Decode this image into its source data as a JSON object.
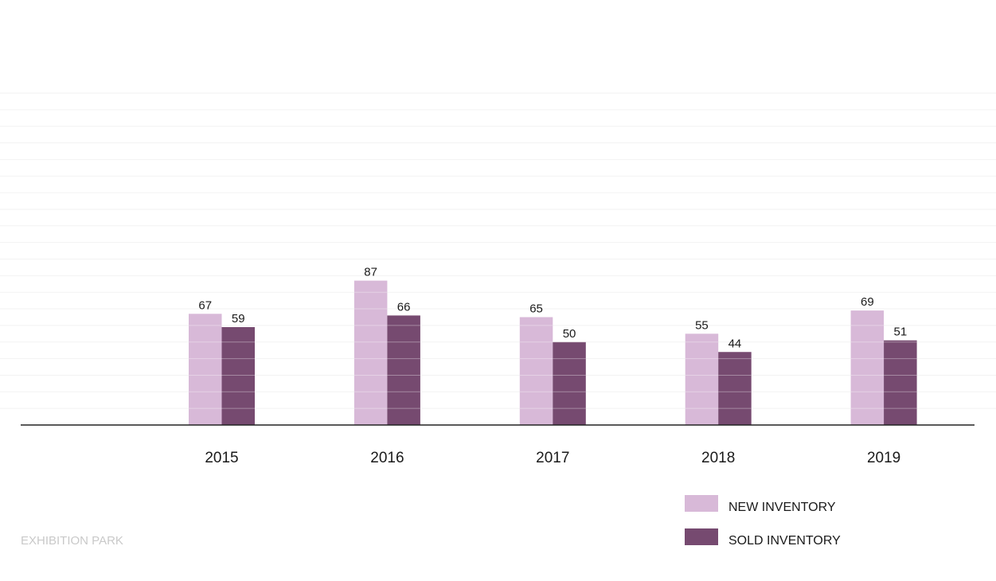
{
  "colors": {
    "new": "#d8b9d8",
    "sold": "#764a70",
    "axis": "#222222",
    "grid": "#f2f2f2",
    "bar_stripe": "#ffffff"
  },
  "chart_data": {
    "type": "bar",
    "categories": [
      "2015",
      "2016",
      "2017",
      "2018",
      "2019"
    ],
    "series": [
      {
        "name": "NEW INVENTORY",
        "values": [
          67,
          87,
          65,
          55,
          69
        ]
      },
      {
        "name": "SOLD INVENTORY",
        "values": [
          59,
          66,
          50,
          44,
          51
        ]
      }
    ],
    "ylim": [
      0,
      200
    ],
    "grid": true,
    "legend": "bottom-right",
    "show_data_labels": true,
    "source": "EXHIBITION PARK"
  }
}
